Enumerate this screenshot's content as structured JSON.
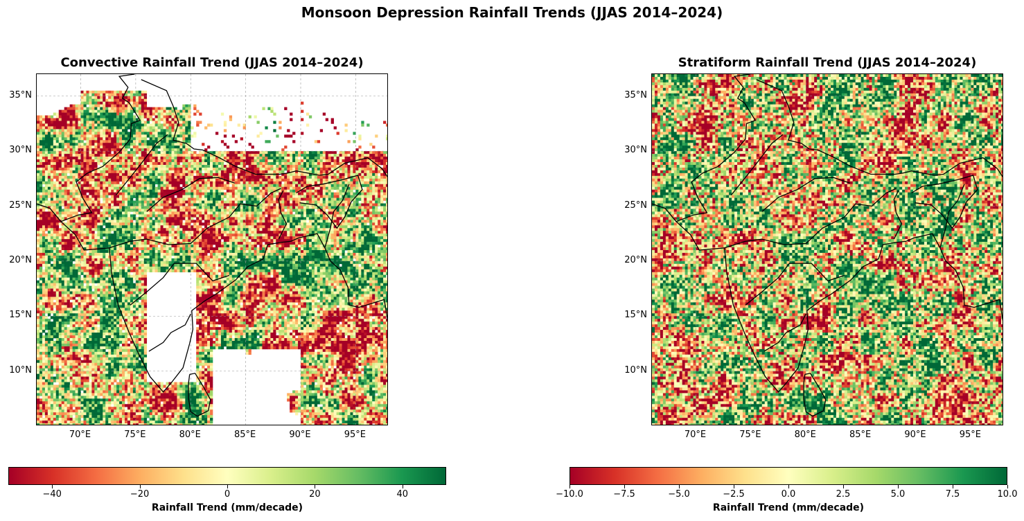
{
  "figure": {
    "suptitle": "Monsoon Depression Rainfall Trends (JJAS 2014–2024)"
  },
  "panels": [
    {
      "title": "Convective Rainfall Trend (JJAS 2014–2024)",
      "lat_ticks": [
        "35°N",
        "30°N",
        "25°N",
        "20°N",
        "15°N",
        "10°N"
      ],
      "lon_ticks": [
        "70°E",
        "75°E",
        "80°E",
        "85°E",
        "90°E",
        "95°E"
      ],
      "colorbar": {
        "label": "Rainfall Trend (mm/decade)",
        "ticks": [
          "−40",
          "−20",
          "0",
          "20",
          "40"
        ],
        "range": [
          -50,
          50
        ]
      }
    },
    {
      "title": "Stratiform Rainfall Trend (JJAS 2014–2024)",
      "lat_ticks": [
        "35°N",
        "30°N",
        "25°N",
        "20°N",
        "15°N",
        "10°N"
      ],
      "lon_ticks": [
        "70°E",
        "75°E",
        "80°E",
        "85°E",
        "90°E",
        "95°E"
      ],
      "colorbar": {
        "label": "Rainfall Trend (mm/decade)",
        "ticks": [
          "−10.0",
          "−7.5",
          "−5.0",
          "−2.5",
          "0.0",
          "2.5",
          "5.0",
          "7.5",
          "10.0"
        ],
        "range": [
          -10,
          10
        ]
      }
    }
  ],
  "map_extent": {
    "lon": [
      66,
      98
    ],
    "lat": [
      5,
      37
    ]
  },
  "colormap": {
    "name": "RdYlGn",
    "stops": [
      "#a50026",
      "#d73027",
      "#f46d43",
      "#fdae61",
      "#fee08b",
      "#ffffbf",
      "#d9ef8b",
      "#a6d96a",
      "#66bd63",
      "#1a9850",
      "#006837"
    ]
  }
}
